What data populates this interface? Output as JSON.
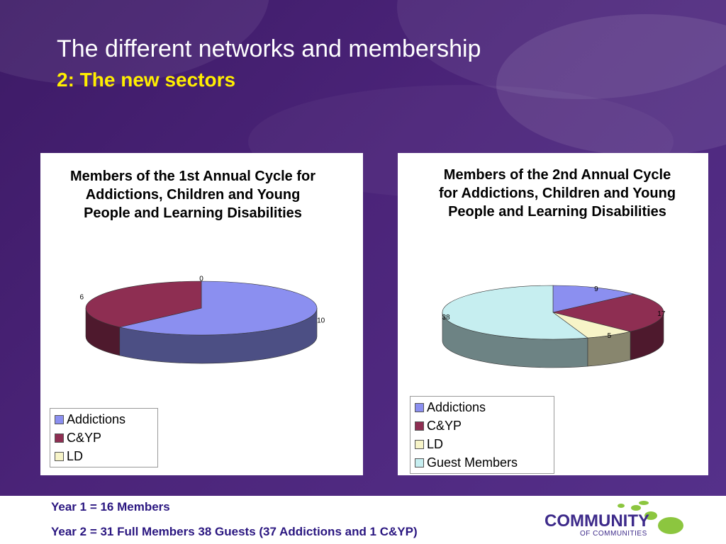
{
  "slide": {
    "title": "The different networks and membership",
    "subtitle": "2: The new sectors"
  },
  "colors": {
    "background": "#4b2479",
    "title": "#ffffff",
    "subtitle": "#ffee00",
    "footer_text": "#2a1680"
  },
  "chart_data": [
    {
      "type": "pie",
      "title": "Members of the 1st Annual Cycle for Addictions, Children and Young People and Learning Disabilities",
      "categories": [
        "Addictions",
        "C&YP",
        "LD"
      ],
      "values": [
        10,
        6,
        0
      ],
      "colors": [
        "#8b8ff0",
        "#8e2e52",
        "#f7f4c8"
      ],
      "legend": {
        "placement": "bottom-left",
        "entries": [
          "Addictions",
          "C&YP",
          "LD"
        ]
      }
    },
    {
      "type": "pie",
      "title": "Members of the 2nd Annual Cycle for Addictions, Children and Young People and Learning Disabilities",
      "categories": [
        "Addictions",
        "C&YP",
        "LD",
        "Guest Members"
      ],
      "values": [
        9,
        17,
        5,
        38
      ],
      "colors": [
        "#8b8ff0",
        "#8e2e52",
        "#f7f4c8",
        "#c6eef0"
      ],
      "legend": {
        "placement": "bottom-left",
        "entries": [
          "Addictions",
          "C&YP",
          "LD",
          "Guest Members"
        ]
      }
    }
  ],
  "footer": {
    "line1": "Year 1 = 16 Members",
    "line2": "Year 2 = 31 Full Members 38 Guests (37 Addictions and 1 C&YP)"
  },
  "logo": {
    "word": "COMMUNITY",
    "sub": "OF COMMUNITIES"
  }
}
